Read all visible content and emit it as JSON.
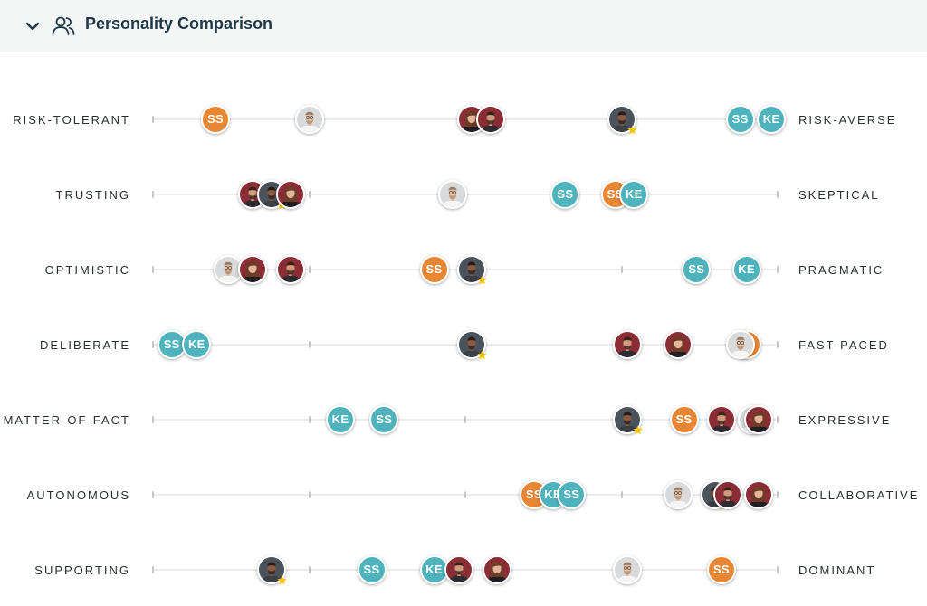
{
  "header": {
    "title": "Personality Comparison"
  },
  "colors": {
    "teal": "#4fb3bd",
    "orange": "#e88634",
    "star": "#f5c400",
    "face_light_bg": "#d9dadb",
    "face_red_bg": "#8b2d35",
    "face_dark_bg": "#4a525c"
  },
  "scale_note": "marker positions are on a 0-100 scale from left trait to right trait",
  "rows": [
    {
      "left": "RISK-TOLERANT",
      "right": "RISK-AVERSE",
      "markers": [
        {
          "type": "initials",
          "text": "SS",
          "color": "orange",
          "pos": 10
        },
        {
          "type": "photo",
          "face": "light",
          "pos": 25
        },
        {
          "type": "photo",
          "face": "red_woman",
          "pos": 51
        },
        {
          "type": "photo",
          "face": "red_man",
          "pos": 54
        },
        {
          "type": "photo",
          "face": "dark",
          "pos": 75,
          "star": true
        },
        {
          "type": "initials",
          "text": "SS",
          "color": "teal",
          "pos": 94
        },
        {
          "type": "initials",
          "text": "KE",
          "color": "teal",
          "pos": 99
        }
      ]
    },
    {
      "left": "TRUSTING",
      "right": "SKEPTICAL",
      "markers": [
        {
          "type": "photo",
          "face": "red_man",
          "pos": 16
        },
        {
          "type": "photo",
          "face": "dark",
          "pos": 19,
          "star": true
        },
        {
          "type": "photo",
          "face": "red_woman",
          "pos": 22
        },
        {
          "type": "photo",
          "face": "light",
          "pos": 48
        },
        {
          "type": "initials",
          "text": "SS",
          "color": "teal",
          "pos": 66
        },
        {
          "type": "initials",
          "text": "SS",
          "color": "orange",
          "pos": 74
        },
        {
          "type": "initials",
          "text": "KE",
          "color": "teal",
          "pos": 77
        }
      ]
    },
    {
      "left": "OPTIMISTIC",
      "right": "PRAGMATIC",
      "markers": [
        {
          "type": "photo",
          "face": "light",
          "pos": 12
        },
        {
          "type": "photo",
          "face": "red_woman",
          "pos": 16
        },
        {
          "type": "photo",
          "face": "red_man",
          "pos": 22
        },
        {
          "type": "initials",
          "text": "SS",
          "color": "orange",
          "pos": 45
        },
        {
          "type": "photo",
          "face": "dark",
          "pos": 51,
          "star": true
        },
        {
          "type": "initials",
          "text": "SS",
          "color": "teal",
          "pos": 87
        },
        {
          "type": "initials",
          "text": "KE",
          "color": "teal",
          "pos": 95
        }
      ]
    },
    {
      "left": "DELIBERATE",
      "right": "FAST-PACED",
      "markers": [
        {
          "type": "initials",
          "text": "SS",
          "color": "teal",
          "pos": 3
        },
        {
          "type": "initials",
          "text": "KE",
          "color": "teal",
          "pos": 7
        },
        {
          "type": "photo",
          "face": "dark",
          "pos": 51,
          "star": true
        },
        {
          "type": "photo",
          "face": "red_man",
          "pos": 76
        },
        {
          "type": "photo",
          "face": "red_woman",
          "pos": 84
        },
        {
          "type": "initials",
          "text": "",
          "color": "orange",
          "pos": 95
        },
        {
          "type": "photo",
          "face": "light",
          "pos": 94
        }
      ]
    },
    {
      "left": "MATTER-OF-FACT",
      "right": "EXPRESSIVE",
      "markers": [
        {
          "type": "initials",
          "text": "KE",
          "color": "teal",
          "pos": 30
        },
        {
          "type": "initials",
          "text": "SS",
          "color": "teal",
          "pos": 37
        },
        {
          "type": "photo",
          "face": "dark",
          "pos": 76,
          "star": true
        },
        {
          "type": "initials",
          "text": "SS",
          "color": "orange",
          "pos": 85
        },
        {
          "type": "photo",
          "face": "red_man",
          "pos": 91
        },
        {
          "type": "photo",
          "face": "light",
          "pos": 96
        },
        {
          "type": "photo",
          "face": "red_woman",
          "pos": 97
        }
      ]
    },
    {
      "left": "AUTONOMOUS",
      "right": "COLLABORATIVE",
      "markers": [
        {
          "type": "initials",
          "text": "SS",
          "color": "orange",
          "pos": 61
        },
        {
          "type": "initials",
          "text": "KE",
          "color": "teal",
          "pos": 64
        },
        {
          "type": "initials",
          "text": "SS",
          "color": "teal",
          "pos": 67
        },
        {
          "type": "photo",
          "face": "light",
          "pos": 84
        },
        {
          "type": "photo",
          "face": "dark",
          "pos": 90,
          "star": true
        },
        {
          "type": "photo",
          "face": "red_man",
          "pos": 92
        },
        {
          "type": "photo",
          "face": "red_woman",
          "pos": 97
        }
      ]
    },
    {
      "left": "SUPPORTING",
      "right": "DOMINANT",
      "markers": [
        {
          "type": "photo",
          "face": "dark",
          "pos": 19,
          "star": true
        },
        {
          "type": "initials",
          "text": "SS",
          "color": "teal",
          "pos": 35
        },
        {
          "type": "initials",
          "text": "KE",
          "color": "teal",
          "pos": 45
        },
        {
          "type": "photo",
          "face": "red_man",
          "pos": 49
        },
        {
          "type": "photo",
          "face": "red_woman",
          "pos": 55
        },
        {
          "type": "photo",
          "face": "light",
          "pos": 76
        },
        {
          "type": "initials",
          "text": "SS",
          "color": "orange",
          "pos": 91
        }
      ]
    }
  ]
}
